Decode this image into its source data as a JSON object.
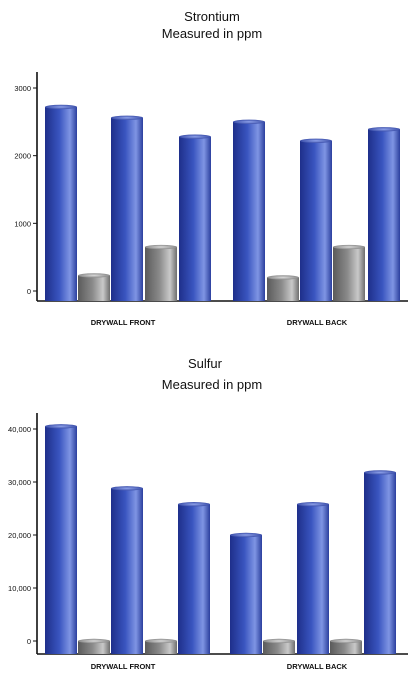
{
  "colors": {
    "blue_dark": "#1e2f8a",
    "blue_mid": "#3a55c0",
    "blue_light": "#7f95e3",
    "gray_dark": "#5b5b5b",
    "gray_mid": "#8a8a8a",
    "gray_light": "#c9c9c9",
    "axis": "#111111"
  },
  "chart_data": [
    {
      "type": "bar",
      "title": "Strontium",
      "subtitle": "Measured in ppm",
      "xlabel": "",
      "ylabel": "",
      "ylim": [
        0,
        3000
      ],
      "yticks": [
        0,
        1000,
        2000,
        3000
      ],
      "ytick_labels": [
        "0",
        "1000",
        "2000",
        "3000"
      ],
      "grid": false,
      "categories": [
        "DRYWALL FRONT",
        "DRYWALL BACK"
      ],
      "bars": [
        {
          "category": "DRYWALL FRONT",
          "value": 2720,
          "color": "blue"
        },
        {
          "category": "DRYWALL FRONT",
          "value": 230,
          "color": "gray"
        },
        {
          "category": "DRYWALL FRONT",
          "value": 2560,
          "color": "blue"
        },
        {
          "category": "DRYWALL FRONT",
          "value": 650,
          "color": "gray"
        },
        {
          "category": "DRYWALL FRONT",
          "value": 2280,
          "color": "blue"
        },
        {
          "category": "DRYWALL BACK",
          "value": 2500,
          "color": "blue"
        },
        {
          "category": "DRYWALL BACK",
          "value": 200,
          "color": "gray"
        },
        {
          "category": "DRYWALL BACK",
          "value": 2220,
          "color": "blue"
        },
        {
          "category": "DRYWALL BACK",
          "value": 650,
          "color": "gray"
        },
        {
          "category": "DRYWALL BACK",
          "value": 2390,
          "color": "blue"
        }
      ]
    },
    {
      "type": "bar",
      "title": "Sulfur",
      "subtitle": "Measured in ppm",
      "xlabel": "",
      "ylabel": "",
      "ylim": [
        0,
        40000
      ],
      "yticks": [
        0,
        10000,
        20000,
        30000,
        40000
      ],
      "ytick_labels": [
        "0",
        "10,000",
        "20,000",
        "30,000",
        "40,000"
      ],
      "grid": false,
      "categories": [
        "DRYWALL FRONT",
        "DRYWALL BACK"
      ],
      "bars": [
        {
          "category": "DRYWALL FRONT",
          "value": 40500,
          "color": "blue"
        },
        {
          "category": "DRYWALL FRONT",
          "value": 0,
          "color": "gray"
        },
        {
          "category": "DRYWALL FRONT",
          "value": 28800,
          "color": "blue"
        },
        {
          "category": "DRYWALL FRONT",
          "value": 0,
          "color": "gray"
        },
        {
          "category": "DRYWALL FRONT",
          "value": 25800,
          "color": "blue"
        },
        {
          "category": "DRYWALL BACK",
          "value": 20000,
          "color": "blue"
        },
        {
          "category": "DRYWALL BACK",
          "value": 0,
          "color": "gray"
        },
        {
          "category": "DRYWALL BACK",
          "value": 25800,
          "color": "blue"
        },
        {
          "category": "DRYWALL BACK",
          "value": 0,
          "color": "gray"
        },
        {
          "category": "DRYWALL BACK",
          "value": 31800,
          "color": "blue"
        }
      ]
    }
  ]
}
